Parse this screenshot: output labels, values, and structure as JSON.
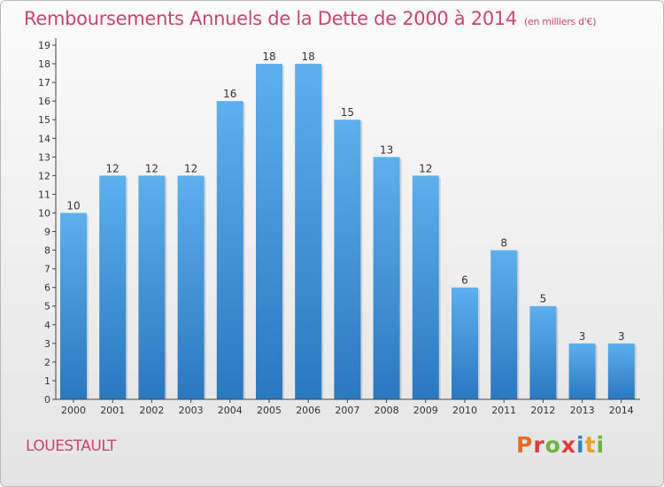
{
  "chart_data": {
    "type": "bar",
    "title": "Remboursements Annuels de la Dette de 2000 à 2014",
    "subtitle": "(en milliers d'€)",
    "categories": [
      "2000",
      "2001",
      "2002",
      "2003",
      "2004",
      "2005",
      "2006",
      "2007",
      "2008",
      "2009",
      "2010",
      "2011",
      "2012",
      "2013",
      "2014"
    ],
    "values": [
      10,
      12,
      12,
      12,
      16,
      18,
      18,
      15,
      13,
      12,
      6,
      8,
      5,
      3,
      3
    ],
    "value_labels": [
      "10",
      "12",
      "12",
      "12",
      "16",
      "18",
      "18",
      "15",
      "13",
      "12",
      "6",
      "8",
      "5",
      "3",
      "3"
    ],
    "ylim": [
      0,
      19
    ],
    "yticks": [
      "0",
      "1",
      "2",
      "3",
      "4",
      "5",
      "6",
      "7",
      "8",
      "9",
      "10",
      "11",
      "12",
      "13",
      "14",
      "15",
      "16",
      "17",
      "18",
      "19"
    ],
    "xlabel": "",
    "ylabel": "",
    "grid": false,
    "bar_color": "#4aa0e0"
  },
  "footer": {
    "location": "LOUESTAULT",
    "brand_letters": [
      "P",
      "r",
      "o",
      "x",
      "i",
      "t",
      "i"
    ]
  },
  "colors": {
    "title": "#c8466a",
    "axis": "#444444",
    "bar_top": "#5cb0ec",
    "bar_bottom": "#2a78c0"
  }
}
